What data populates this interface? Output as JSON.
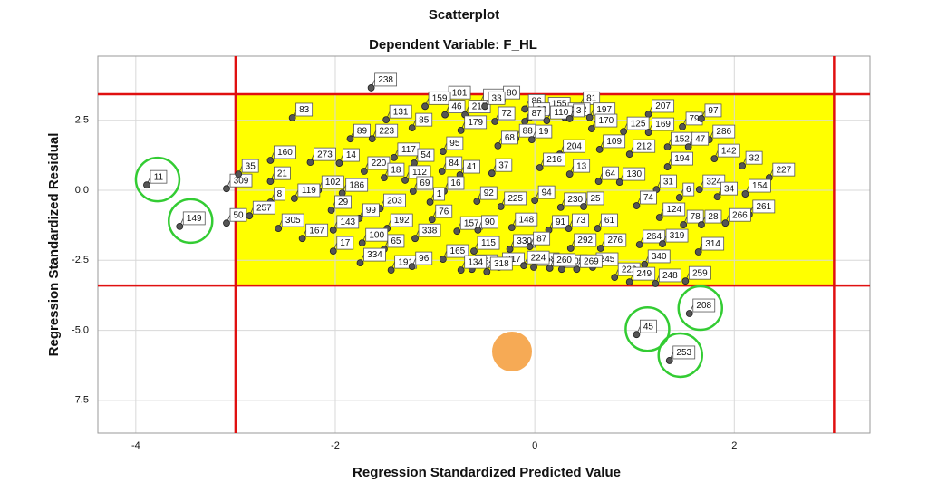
{
  "chart_data": {
    "type": "scatter",
    "title": "Scatterplot",
    "subtitle": "Dependent Variable: F_HL",
    "x_label": "Regression Standardized Predicted Value",
    "y_label": "Regression Standardized Residual",
    "xlim": [
      -4.38,
      3.36
    ],
    "ylim": [
      -8.67,
      4.79
    ],
    "xticks": [
      -4,
      -2,
      0,
      2
    ],
    "yticks": [
      2.5,
      {
        "value": 0,
        "label": "0.0"
      },
      -2.5,
      {
        "value": -5,
        "label": "-5.0"
      },
      -7.5
    ],
    "grid": true,
    "point_color": "#555555",
    "band_color": "#ffff00",
    "line_color": "#e01010",
    "ring_color": "#33cc33",
    "reference_lines": {
      "x": [
        -3,
        3
      ],
      "y": [
        -3.4,
        3.43
      ]
    },
    "points": [
      {
        "label": "238",
        "x": -1.64,
        "y": 3.66
      },
      {
        "label": "101",
        "x": -0.9,
        "y": 3.2
      },
      {
        "label": "163",
        "x": -0.55,
        "y": 3.1
      },
      {
        "label": "80",
        "x": -0.35,
        "y": 3.2
      },
      {
        "label": "86",
        "x": -0.1,
        "y": 2.9
      },
      {
        "label": "155",
        "x": 0.1,
        "y": 2.8
      },
      {
        "label": "81",
        "x": 0.45,
        "y": 3.0
      },
      {
        "label": "30",
        "x": -0.05,
        "y": 2.6
      },
      {
        "label": "272",
        "x": 0.3,
        "y": 2.6
      },
      {
        "label": "159",
        "x": -1.1,
        "y": 3.0
      },
      {
        "label": "46",
        "x": -0.9,
        "y": 2.7
      },
      {
        "label": "215",
        "x": -0.7,
        "y": 2.7
      },
      {
        "label": "33",
        "x": -0.5,
        "y": 3.0
      },
      {
        "label": "197",
        "x": 0.55,
        "y": 2.6
      },
      {
        "label": "207",
        "x": 1.14,
        "y": 2.72
      },
      {
        "label": "83",
        "x": -2.43,
        "y": 2.59
      },
      {
        "label": "131",
        "x": -1.49,
        "y": 2.52
      },
      {
        "label": "85",
        "x": -1.23,
        "y": 2.23
      },
      {
        "label": "72",
        "x": -0.4,
        "y": 2.46
      },
      {
        "label": "87",
        "x": -0.1,
        "y": 2.46
      },
      {
        "label": "110",
        "x": 0.12,
        "y": 2.49
      },
      {
        "label": "3",
        "x": 0.35,
        "y": 2.56
      },
      {
        "label": "79",
        "x": 1.48,
        "y": 2.27
      },
      {
        "label": "97",
        "x": 1.67,
        "y": 2.56
      },
      {
        "label": "179",
        "x": -0.74,
        "y": 2.14
      },
      {
        "label": "170",
        "x": 0.57,
        "y": 2.2
      },
      {
        "label": "125",
        "x": 0.89,
        "y": 2.1
      },
      {
        "label": "169",
        "x": 1.14,
        "y": 2.07
      },
      {
        "label": "286",
        "x": 1.75,
        "y": 1.81
      },
      {
        "label": "89",
        "x": -1.85,
        "y": 1.84
      },
      {
        "label": "223",
        "x": -1.63,
        "y": 1.84
      },
      {
        "label": "88",
        "x": -0.19,
        "y": 1.84
      },
      {
        "label": "19",
        "x": -0.03,
        "y": 1.81
      },
      {
        "label": "68",
        "x": -0.37,
        "y": 1.59
      },
      {
        "label": "95",
        "x": -0.92,
        "y": 1.39
      },
      {
        "label": "109",
        "x": 0.65,
        "y": 1.46
      },
      {
        "label": "152",
        "x": 1.33,
        "y": 1.55
      },
      {
        "label": "47",
        "x": 1.54,
        "y": 1.55
      },
      {
        "label": "160",
        "x": -2.65,
        "y": 1.07
      },
      {
        "label": "273",
        "x": -2.25,
        "y": 1.0
      },
      {
        "label": "14",
        "x": -1.96,
        "y": 0.97
      },
      {
        "label": "117",
        "x": -1.41,
        "y": 1.17
      },
      {
        "label": "54",
        "x": -1.21,
        "y": 0.97
      },
      {
        "label": "204",
        "x": 0.25,
        "y": 1.29
      },
      {
        "label": "212",
        "x": 0.95,
        "y": 1.29
      },
      {
        "label": "142",
        "x": 1.8,
        "y": 1.13
      },
      {
        "label": "194",
        "x": 1.33,
        "y": 0.84
      },
      {
        "label": "32",
        "x": 2.08,
        "y": 0.87
      },
      {
        "label": "220",
        "x": -1.71,
        "y": 0.68
      },
      {
        "label": "84",
        "x": -0.93,
        "y": 0.68
      },
      {
        "label": "41",
        "x": -0.75,
        "y": 0.55
      },
      {
        "label": "37",
        "x": -0.43,
        "y": 0.61
      },
      {
        "label": "216",
        "x": 0.05,
        "y": 0.81
      },
      {
        "label": "13",
        "x": 0.35,
        "y": 0.58
      },
      {
        "label": "227",
        "x": 2.35,
        "y": 0.45
      },
      {
        "label": "21",
        "x": -2.65,
        "y": 0.32
      },
      {
        "label": "18",
        "x": -1.51,
        "y": 0.45
      },
      {
        "label": "112",
        "x": -1.3,
        "y": 0.36
      },
      {
        "label": "64",
        "x": 0.64,
        "y": 0.32
      },
      {
        "label": "130",
        "x": 0.85,
        "y": 0.29
      },
      {
        "label": "31",
        "x": 1.22,
        "y": 0.03
      },
      {
        "label": "324",
        "x": 1.65,
        "y": 0.03
      },
      {
        "label": "16",
        "x": -0.91,
        "y": -0.03
      },
      {
        "label": "34",
        "x": 1.83,
        "y": -0.23
      },
      {
        "label": "154",
        "x": 2.11,
        "y": -0.13
      },
      {
        "label": "102",
        "x": -2.17,
        "y": 0.0
      },
      {
        "label": "309",
        "x": -3.09,
        "y": 0.06
      },
      {
        "label": "35",
        "x": -2.97,
        "y": 0.58
      },
      {
        "label": "11",
        "x": -3.89,
        "y": 0.19,
        "circled": true
      },
      {
        "label": "186",
        "x": -1.93,
        "y": -0.1
      },
      {
        "label": "119",
        "x": -2.41,
        "y": -0.29
      },
      {
        "label": "8",
        "x": -2.65,
        "y": -0.42
      },
      {
        "label": "69",
        "x": -1.22,
        "y": -0.03
      },
      {
        "label": "1",
        "x": -1.05,
        "y": -0.42
      },
      {
        "label": "92",
        "x": -0.58,
        "y": -0.39
      },
      {
        "label": "94",
        "x": 0.0,
        "y": -0.36
      },
      {
        "label": "230",
        "x": 0.26,
        "y": -0.61
      },
      {
        "label": "25",
        "x": 0.49,
        "y": -0.58
      },
      {
        "label": "74",
        "x": 1.02,
        "y": -0.55
      },
      {
        "label": "6",
        "x": 1.45,
        "y": -0.26
      },
      {
        "label": "203",
        "x": -1.55,
        "y": -0.65
      },
      {
        "label": "29",
        "x": -2.04,
        "y": -0.71
      },
      {
        "label": "225",
        "x": -0.34,
        "y": -0.58
      },
      {
        "label": "261",
        "x": 2.15,
        "y": -0.87
      },
      {
        "label": "257",
        "x": -2.86,
        "y": -0.91
      },
      {
        "label": "76",
        "x": -1.03,
        "y": -1.04
      },
      {
        "label": "124",
        "x": 1.25,
        "y": -0.97
      },
      {
        "label": "78",
        "x": 1.49,
        "y": -1.23
      },
      {
        "label": "28",
        "x": 1.67,
        "y": -1.23
      },
      {
        "label": "266",
        "x": 1.91,
        "y": -1.17
      },
      {
        "label": "99",
        "x": -1.76,
        "y": -1.0
      },
      {
        "label": "143",
        "x": -2.02,
        "y": -1.42
      },
      {
        "label": "192",
        "x": -1.48,
        "y": -1.36
      },
      {
        "label": "305",
        "x": -2.57,
        "y": -1.36
      },
      {
        "label": "167",
        "x": -2.33,
        "y": -1.72
      },
      {
        "label": "149",
        "x": -3.56,
        "y": -1.29,
        "circled": true
      },
      {
        "label": "148",
        "x": -0.23,
        "y": -1.33
      },
      {
        "label": "91",
        "x": 0.14,
        "y": -1.42
      },
      {
        "label": "73",
        "x": 0.34,
        "y": -1.36
      },
      {
        "label": "61",
        "x": 0.63,
        "y": -1.36
      },
      {
        "label": "157",
        "x": -0.78,
        "y": -1.46
      },
      {
        "label": "90",
        "x": -0.57,
        "y": -1.42
      },
      {
        "label": "100",
        "x": -1.73,
        "y": -1.88
      },
      {
        "label": "338",
        "x": -1.2,
        "y": -1.72
      },
      {
        "label": "50",
        "x": -3.09,
        "y": -1.17
      },
      {
        "label": "17",
        "x": -2.02,
        "y": -2.17
      },
      {
        "label": "65",
        "x": -1.51,
        "y": -2.1
      },
      {
        "label": "330",
        "x": -0.25,
        "y": -2.1
      },
      {
        "label": "87",
        "x": -0.05,
        "y": -2.01
      },
      {
        "label": "292",
        "x": 0.36,
        "y": -2.07
      },
      {
        "label": "276",
        "x": 0.66,
        "y": -2.07
      },
      {
        "label": "264",
        "x": 1.05,
        "y": -1.94
      },
      {
        "label": "319",
        "x": 1.28,
        "y": -1.91
      },
      {
        "label": "314",
        "x": 1.64,
        "y": -2.2
      },
      {
        "label": "115",
        "x": -0.61,
        "y": -2.17
      },
      {
        "label": "334",
        "x": -1.75,
        "y": -2.59
      },
      {
        "label": "165",
        "x": -0.92,
        "y": -2.46
      },
      {
        "label": "191",
        "x": -1.44,
        "y": -2.85
      },
      {
        "label": "96",
        "x": -1.23,
        "y": -2.72
      },
      {
        "label": "164",
        "x": -0.63,
        "y": -2.82
      },
      {
        "label": "317",
        "x": -0.36,
        "y": -2.75
      },
      {
        "label": "158",
        "x": -0.01,
        "y": -2.75
      },
      {
        "label": "105",
        "x": 0.27,
        "y": -2.82
      },
      {
        "label": "245",
        "x": 0.58,
        "y": -2.75
      },
      {
        "label": "340",
        "x": 1.1,
        "y": -2.65
      },
      {
        "label": "222",
        "x": 0.8,
        "y": -3.11
      },
      {
        "label": "248",
        "x": 1.21,
        "y": -3.33
      },
      {
        "label": "259",
        "x": 1.51,
        "y": -3.24
      },
      {
        "label": "224",
        "x": -0.11,
        "y": -2.69
      },
      {
        "label": "260",
        "x": 0.15,
        "y": -2.78
      },
      {
        "label": "269",
        "x": 0.42,
        "y": -2.82
      },
      {
        "label": "134",
        "x": -0.74,
        "y": -2.85
      },
      {
        "label": "318",
        "x": -0.48,
        "y": -2.91
      },
      {
        "label": "249",
        "x": 0.95,
        "y": -3.27
      },
      {
        "label": "45",
        "x": 1.02,
        "y": -5.15,
        "circled": true
      },
      {
        "label": "208",
        "x": 1.55,
        "y": -4.4,
        "circled": true
      },
      {
        "label": "253",
        "x": 1.35,
        "y": -6.08,
        "circled": true
      }
    ]
  }
}
